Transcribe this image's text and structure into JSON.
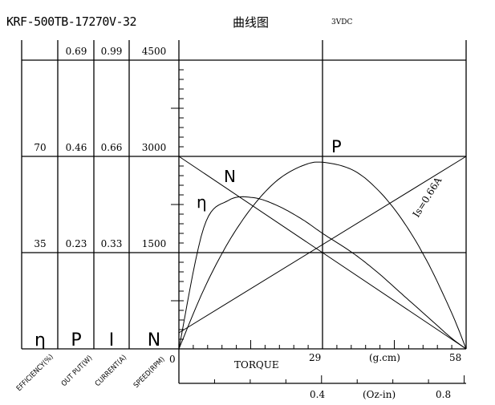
{
  "header": {
    "model": "KRF-500TB-17270V-32",
    "chart_name": "曲线图",
    "voltage": "3VDC"
  },
  "columns": [
    {
      "symbol": "η",
      "name": "EFFICIENCY(%)",
      "ticks": [
        "",
        "70",
        "35"
      ]
    },
    {
      "symbol": "P",
      "name": "OUT PUT(W)",
      "ticks": [
        "0.69",
        "0.46",
        "0.23"
      ]
    },
    {
      "symbol": "I",
      "name": "CURRENT(A)",
      "ticks": [
        "0.99",
        "0.66",
        "0.33"
      ]
    },
    {
      "symbol": "N",
      "name": "SPEED(RPM)",
      "ticks": [
        "4500",
        "3000",
        "1500"
      ]
    }
  ],
  "axis": {
    "x_origin": "0",
    "x_label": "TORQUE",
    "x_mid": "29",
    "x_unit": "(g.cm)",
    "x_max": "58",
    "x2_mid": "0.4",
    "x2_unit": "(Oz-in)",
    "x2_max": "0.8"
  },
  "curve_labels": {
    "power": "P",
    "speed": "N",
    "efficiency": "η",
    "current": "Is=0.66A"
  },
  "chart_data": {
    "type": "line",
    "title": "KRF-500TB-17270V-32 曲线图 3VDC",
    "xlabel": "TORQUE (g.cm)",
    "xlim": [
      0,
      58
    ],
    "x_ticks": [
      0,
      29,
      58
    ],
    "x2label": "(Oz-in)",
    "x2_ticks": [
      0.4,
      0.8
    ],
    "grid": true,
    "x": [
      0,
      5,
      10,
      15,
      20,
      25,
      29,
      35,
      40,
      45,
      50,
      55,
      58
    ],
    "series": [
      {
        "name": "Speed N (RPM)",
        "axis": "N",
        "ylim": [
          0,
          4500
        ],
        "values": [
          3000,
          2741,
          2483,
          2224,
          1966,
          1707,
          1500,
          1190,
          931,
          672,
          414,
          155,
          0
        ]
      },
      {
        "name": "Current I (A)",
        "axis": "I",
        "ylim": [
          0,
          0.99
        ],
        "values": [
          0.055,
          0.107,
          0.159,
          0.211,
          0.264,
          0.316,
          0.358,
          0.41,
          0.462,
          0.515,
          0.567,
          0.619,
          0.66
        ]
      },
      {
        "name": "Output P (W)",
        "axis": "P",
        "ylim": [
          0,
          0.69
        ],
        "values": [
          0,
          0.141,
          0.255,
          0.342,
          0.404,
          0.438,
          0.446,
          0.428,
          0.382,
          0.31,
          0.212,
          0.088,
          0
        ]
      },
      {
        "name": "Efficiency η (%)",
        "axis": "η",
        "ylim": [
          0,
          105
        ],
        "values": [
          0,
          44,
          54,
          55,
          52,
          47,
          42,
          35,
          28,
          20,
          12,
          4,
          0
        ]
      }
    ],
    "annotations": [
      "Is=0.66A"
    ]
  }
}
